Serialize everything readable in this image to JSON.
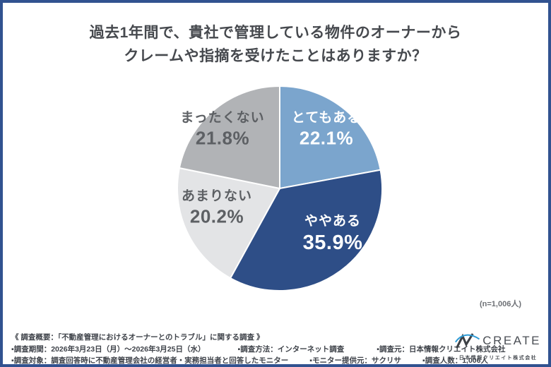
{
  "title": {
    "line1": "過去1年間で、貴社で管理している物件のオーナーから",
    "line2": "クレームや指摘を受けたことはありますか？"
  },
  "chart_data": {
    "type": "pie",
    "title": "過去1年間で、貴社で管理している物件のオーナーからクレームや指摘を受けたことはありますか？",
    "labels": [
      "とてもある",
      "ややある",
      "あまりない",
      "まったくない"
    ],
    "values": [
      22.1,
      35.9,
      20.2,
      21.8
    ],
    "value_labels": [
      "22.1%",
      "35.9%",
      "20.2%",
      "21.8%"
    ],
    "colors": [
      "#7BA5CD",
      "#2E4E87",
      "#E3E4E6",
      "#B1B3B6"
    ],
    "text_colors": [
      "#FFFFFF",
      "#FFFFFF",
      "#5D6064",
      "#5D6064"
    ],
    "start_angle_deg": 0,
    "direction": "clockwise",
    "legend": "none",
    "label_style": "inside",
    "n_note": "(n=1,006人)"
  },
  "footer": {
    "overview": "《 調査概要：「不動産管理におけるオーナーとのトラブル」に関する調査 》",
    "line2": [
      "▪調査期間：2026年3月23日（月）～2026年3月25日（水）",
      "▪調査方法：インターネット調査",
      "▪調査元：日本情報クリエイト株式会社"
    ],
    "line3": [
      "▪調査対象：調査回答時に不動産管理会社の経営者・実務担当者と回答したモニター",
      "▪モニター提供元：サクリサ",
      "▪調査人数：1,006人"
    ],
    "logo": {
      "brand": "CREATE",
      "company": "日本情報クリエイト株式会社"
    }
  },
  "colors": {
    "border": "#315290",
    "title_text": "#46494E",
    "footer_text": "#3E4249",
    "logo_blue": "#2E9BD6",
    "logo_dark": "#3C4045"
  }
}
